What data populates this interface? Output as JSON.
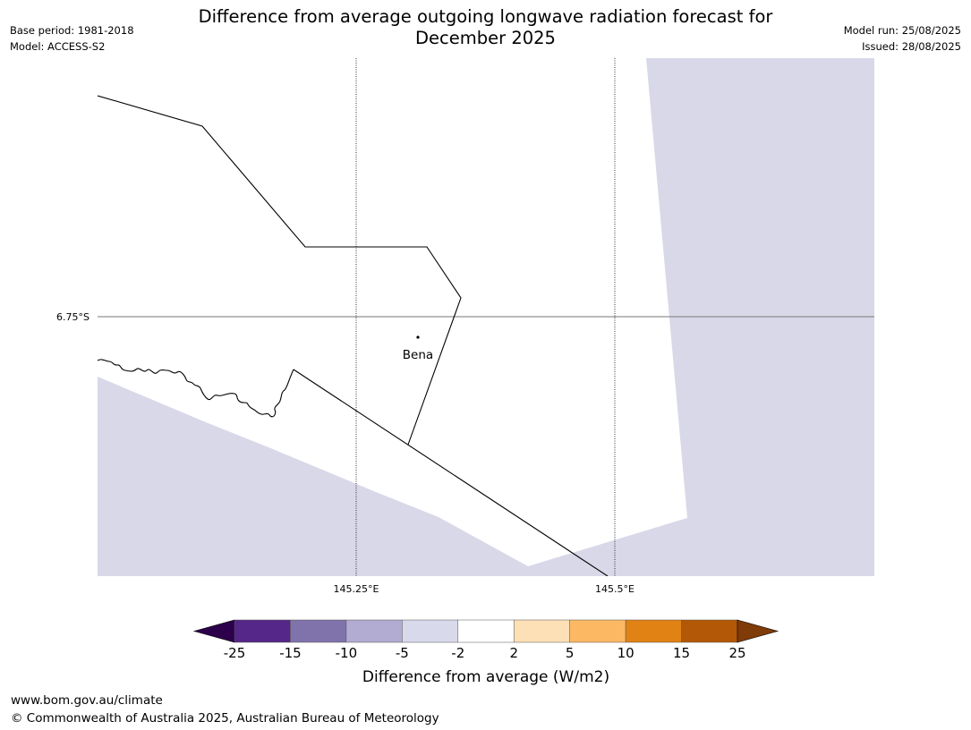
{
  "title_line1": "Difference from average outgoing longwave radiation forecast for",
  "title_line2": "December 2025",
  "meta_left": {
    "base_period": "Base period: 1981-2018",
    "model": "Model: ACCESS-S2"
  },
  "meta_right": {
    "model_run": "Model run: 25/08/2025",
    "issued": "Issued: 28/08/2025"
  },
  "map": {
    "latitude_labels": [
      "6.75°S"
    ],
    "longitude_labels": [
      "145.25°E",
      "145.5°E"
    ],
    "place": {
      "name": "Bena"
    },
    "colors": {
      "land_fill": "#ffffff",
      "sea_fill_category": "#d8d8e9"
    }
  },
  "colorbar": {
    "title": "Difference from average (W/m2)",
    "tick_labels": [
      "-25",
      "-15",
      "-10",
      "-5",
      "-2",
      "2",
      "5",
      "10",
      "15",
      "25"
    ],
    "colors": {
      "under": "#2d004b",
      "bins": [
        "#542788",
        "#8073ac",
        "#b2abd2",
        "#d8daeb",
        "#ffffff",
        "#fee0b6",
        "#fdb863",
        "#e08214",
        "#b35806"
      ],
      "over": "#7f3b08"
    }
  },
  "footer": {
    "url": "www.bom.gov.au/climate",
    "copyright": "© Commonwealth of Australia 2025, Australian Bureau of Meteorology"
  }
}
